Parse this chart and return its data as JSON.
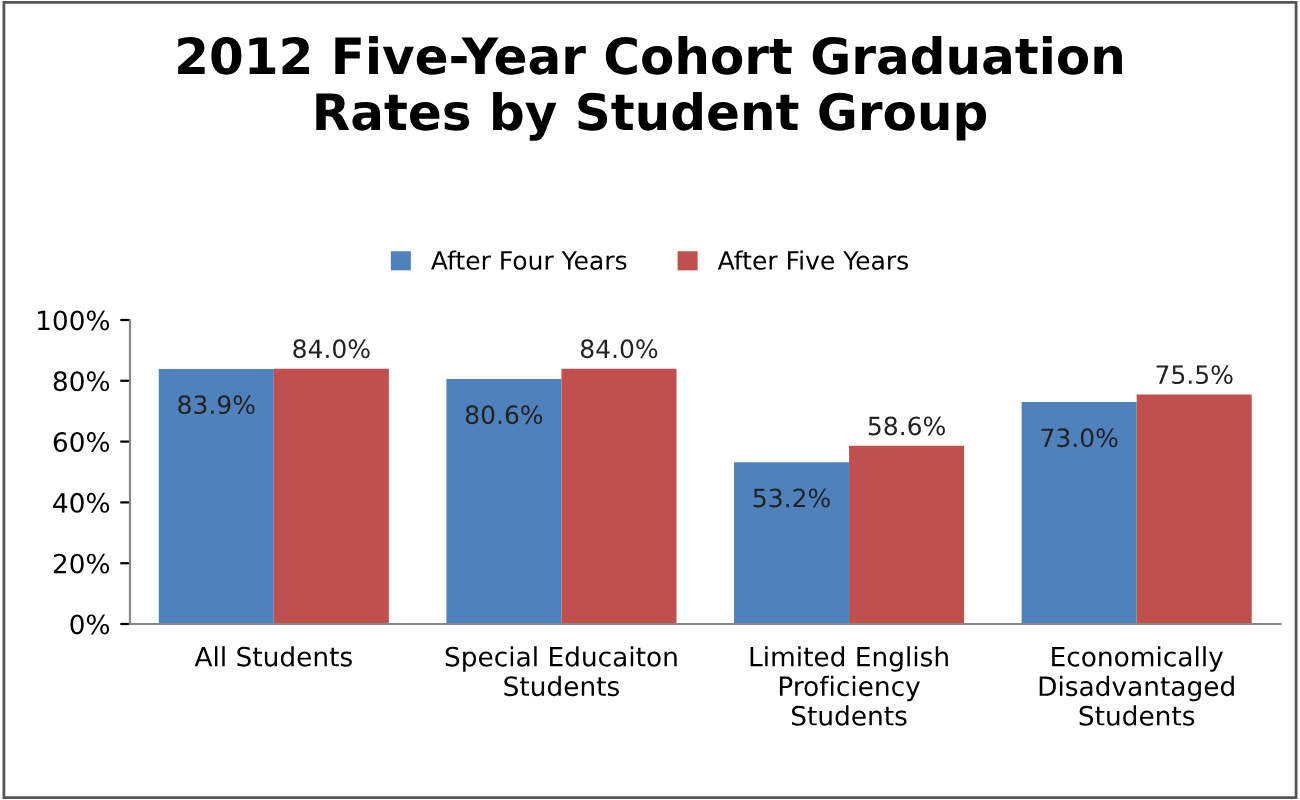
{
  "chart_data": {
    "type": "bar",
    "title": "2012 Five-Year Cohort Graduation\nRates by Student Group",
    "categories": [
      "All Students",
      "Special Educaiton\nStudents",
      "Limited English\nProficiency\nStudents",
      "Economically\nDisadvantaged\nStudents"
    ],
    "series": [
      {
        "name": "After Four Years",
        "color": "#4f81bd",
        "values": [
          83.9,
          80.6,
          53.2,
          73.0
        ],
        "value_labels": [
          "83.9%",
          "80.6%",
          "53.2%",
          "73.0%"
        ]
      },
      {
        "name": "After Five Years",
        "color": "#c0504d",
        "values": [
          84.0,
          84.0,
          58.6,
          75.5
        ],
        "value_labels": [
          "84.0%",
          "84.0%",
          "58.6%",
          "75.5%"
        ]
      }
    ],
    "ylim": [
      0,
      100
    ],
    "yticks": [
      {
        "value": 0,
        "label": "0%"
      },
      {
        "value": 20,
        "label": "20%"
      },
      {
        "value": 40,
        "label": "40%"
      },
      {
        "value": 60,
        "label": "60%"
      },
      {
        "value": 80,
        "label": "80%"
      },
      {
        "value": 100,
        "label": "100%"
      }
    ],
    "grid": false,
    "legend": "top"
  }
}
